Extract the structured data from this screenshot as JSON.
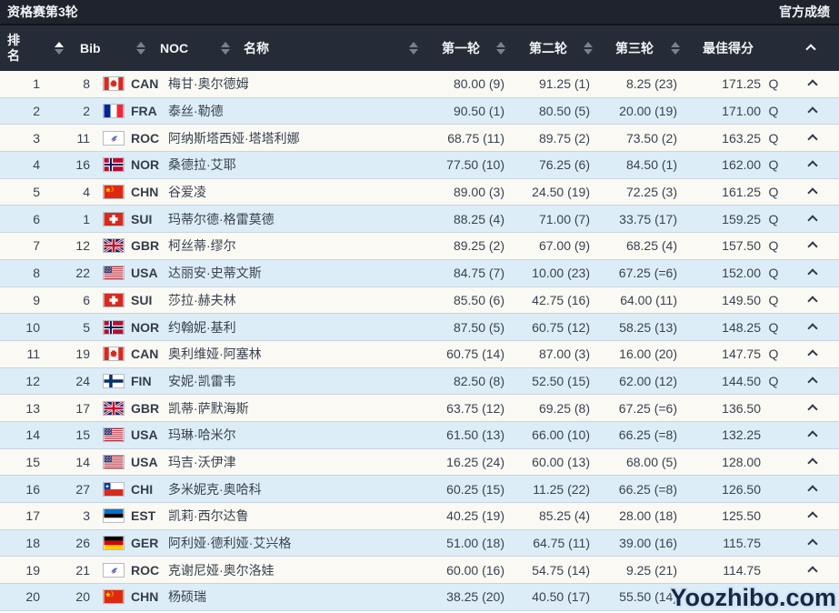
{
  "title_bar": {
    "left": "资格赛第3轮",
    "right": "官方成绩"
  },
  "header": {
    "rank": "排名",
    "bib": "Bib",
    "noc": "NOC",
    "name": "名称",
    "round1": "第一轮",
    "round2": "第二轮",
    "round3": "第三轮",
    "best": "最佳得分"
  },
  "colors": {
    "titlebar_bg": "#1e232d",
    "header_bg": "#262c37",
    "odd_row_bg": "#faf9f4",
    "even_row_bg": "#ddedf8",
    "body_text": "#39424e"
  },
  "rows": [
    {
      "rank": "1",
      "bib": "8",
      "noc": "CAN",
      "name": "梅甘·奥尔德姆",
      "r1": "80.00 (9)",
      "r2": "91.25 (1)",
      "r3": "8.25 (23)",
      "best": "171.25",
      "q": "Q"
    },
    {
      "rank": "2",
      "bib": "2",
      "noc": "FRA",
      "name": "泰丝·勒德",
      "r1": "90.50 (1)",
      "r2": "80.50 (5)",
      "r3": "20.00 (19)",
      "best": "171.00",
      "q": "Q"
    },
    {
      "rank": "3",
      "bib": "11",
      "noc": "ROC",
      "name": "阿纳斯塔西娅·塔塔利娜",
      "r1": "68.75 (11)",
      "r2": "89.75 (2)",
      "r3": "73.50 (2)",
      "best": "163.25",
      "q": "Q"
    },
    {
      "rank": "4",
      "bib": "16",
      "noc": "NOR",
      "name": "桑德拉·艾耶",
      "r1": "77.50 (10)",
      "r2": "76.25 (6)",
      "r3": "84.50 (1)",
      "best": "162.00",
      "q": "Q"
    },
    {
      "rank": "5",
      "bib": "4",
      "noc": "CHN",
      "name": "谷爱凌",
      "r1": "89.00 (3)",
      "r2": "24.50 (19)",
      "r3": "72.25 (3)",
      "best": "161.25",
      "q": "Q"
    },
    {
      "rank": "6",
      "bib": "1",
      "noc": "SUI",
      "name": "玛蒂尔德·格雷莫德",
      "r1": "88.25 (4)",
      "r2": "71.00 (7)",
      "r3": "33.75 (17)",
      "best": "159.25",
      "q": "Q"
    },
    {
      "rank": "7",
      "bib": "12",
      "noc": "GBR",
      "name": "柯丝蒂·缪尔",
      "r1": "89.25 (2)",
      "r2": "67.00 (9)",
      "r3": "68.25 (4)",
      "best": "157.50",
      "q": "Q"
    },
    {
      "rank": "8",
      "bib": "22",
      "noc": "USA",
      "name": "达丽安·史蒂文斯",
      "r1": "84.75 (7)",
      "r2": "10.00 (23)",
      "r3": "67.25 (=6)",
      "best": "152.00",
      "q": "Q"
    },
    {
      "rank": "9",
      "bib": "6",
      "noc": "SUI",
      "name": "莎拉·赫夫林",
      "r1": "85.50 (6)",
      "r2": "42.75 (16)",
      "r3": "64.00 (11)",
      "best": "149.50",
      "q": "Q"
    },
    {
      "rank": "10",
      "bib": "5",
      "noc": "NOR",
      "name": "约翰妮·基利",
      "r1": "87.50 (5)",
      "r2": "60.75 (12)",
      "r3": "58.25 (13)",
      "best": "148.25",
      "q": "Q"
    },
    {
      "rank": "11",
      "bib": "19",
      "noc": "CAN",
      "name": "奥利维娅·阿塞林",
      "r1": "60.75 (14)",
      "r2": "87.00 (3)",
      "r3": "16.00 (20)",
      "best": "147.75",
      "q": "Q"
    },
    {
      "rank": "12",
      "bib": "24",
      "noc": "FIN",
      "name": "安妮·凯雷韦",
      "r1": "82.50 (8)",
      "r2": "52.50 (15)",
      "r3": "62.00 (12)",
      "best": "144.50",
      "q": "Q"
    },
    {
      "rank": "13",
      "bib": "17",
      "noc": "GBR",
      "name": "凯蒂·萨默海斯",
      "r1": "63.75 (12)",
      "r2": "69.25 (8)",
      "r3": "67.25 (=6)",
      "best": "136.50",
      "q": ""
    },
    {
      "rank": "14",
      "bib": "15",
      "noc": "USA",
      "name": "玛琳·哈米尔",
      "r1": "61.50 (13)",
      "r2": "66.00 (10)",
      "r3": "66.25 (=8)",
      "best": "132.25",
      "q": ""
    },
    {
      "rank": "15",
      "bib": "14",
      "noc": "USA",
      "name": "玛吉·沃伊津",
      "r1": "16.25 (24)",
      "r2": "60.00 (13)",
      "r3": "68.00 (5)",
      "best": "128.00",
      "q": ""
    },
    {
      "rank": "16",
      "bib": "27",
      "noc": "CHI",
      "name": "多米妮克·奥哈科",
      "r1": "60.25 (15)",
      "r2": "11.25 (22)",
      "r3": "66.25 (=8)",
      "best": "126.50",
      "q": ""
    },
    {
      "rank": "17",
      "bib": "3",
      "noc": "EST",
      "name": "凯莉·西尔达鲁",
      "r1": "40.25 (19)",
      "r2": "85.25 (4)",
      "r3": "28.00 (18)",
      "best": "125.50",
      "q": ""
    },
    {
      "rank": "18",
      "bib": "26",
      "noc": "GER",
      "name": "阿利娅·德利娅·艾兴格",
      "r1": "51.00 (18)",
      "r2": "64.75 (11)",
      "r3": "39.00 (16)",
      "best": "115.75",
      "q": ""
    },
    {
      "rank": "19",
      "bib": "21",
      "noc": "ROC",
      "name": "克谢尼娅·奥尔洛娃",
      "r1": "60.00 (16)",
      "r2": "54.75 (14)",
      "r3": "9.25 (21)",
      "best": "114.75",
      "q": ""
    },
    {
      "rank": "20",
      "bib": "20",
      "noc": "CHN",
      "name": "杨硕瑞",
      "r1": "38.25 (20)",
      "r2": "40.50 (17)",
      "r3": "55.50 (14)",
      "best": "",
      "q": ""
    }
  ],
  "watermark": "Yoozhibo.com"
}
